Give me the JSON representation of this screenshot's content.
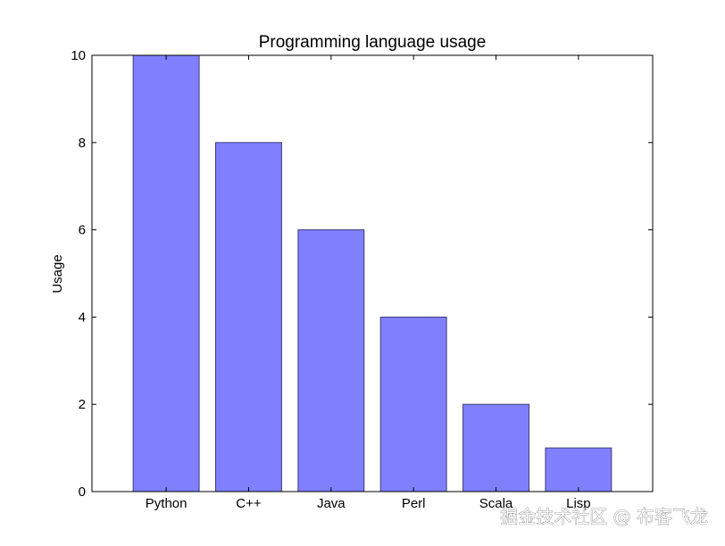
{
  "chart_data": {
    "type": "bar",
    "title": "Programming language usage",
    "xlabel": "",
    "ylabel": "Usage",
    "categories": [
      "Python",
      "C++",
      "Java",
      "Perl",
      "Scala",
      "Lisp"
    ],
    "values": [
      10,
      8,
      6,
      4,
      2,
      1
    ],
    "ylim": [
      0,
      10
    ],
    "yticks": [
      "0",
      "2",
      "4",
      "6",
      "8",
      "10"
    ],
    "grid": false,
    "bar_color": "#8080ff",
    "bar_edge_color": "#3a3a7a"
  },
  "watermark": "掘金技术社区 @ 布客飞龙"
}
